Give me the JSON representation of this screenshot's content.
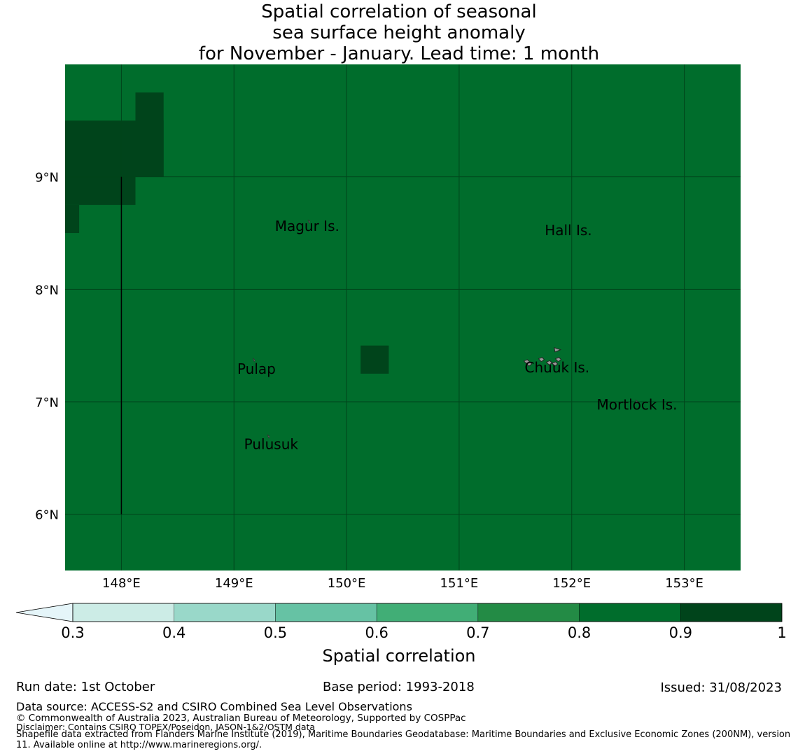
{
  "title": {
    "line1": "Spatial correlation of seasonal",
    "line2": "sea surface height anomaly",
    "line3": "for November - January. Lead time: 1 month"
  },
  "map": {
    "lon_ticks": [
      "148°E",
      "149°E",
      "150°E",
      "151°E",
      "152°E",
      "153°E"
    ],
    "lat_ticks": [
      "9°N",
      "8°N",
      "7°N",
      "6°N"
    ],
    "lon_range": [
      147.5,
      153.5
    ],
    "lat_range": [
      5.5,
      10.0
    ],
    "background_value_color": "#006d2c",
    "high_value_color": "#00441b",
    "grid_color": "#00441b",
    "land_color": "#999999",
    "high_correlation_cells": [
      {
        "lon_min": 148.125,
        "lon_max": 148.375,
        "lat_min": 9.0,
        "lat_max": 9.75
      },
      {
        "lon_min": 147.5,
        "lon_max": 148.375,
        "lat_min": 9.0,
        "lat_max": 9.5
      },
      {
        "lon_min": 147.5,
        "lon_max": 148.125,
        "lat_min": 8.75,
        "lat_max": 9.0
      },
      {
        "lon_min": 147.5,
        "lon_max": 147.625,
        "lat_min": 8.5,
        "lat_max": 8.75
      },
      {
        "lon_min": 150.125,
        "lon_max": 150.375,
        "lat_min": 7.25,
        "lat_max": 7.5
      }
    ],
    "boundary_line": {
      "lon": 148.0,
      "lat_min": 6.0,
      "lat_max": 9.0
    },
    "places": [
      {
        "name": "Magur Is.",
        "lon": 149.65,
        "lat": 8.52
      },
      {
        "name": "Hall Is.",
        "lon": 151.97,
        "lat": 8.48
      },
      {
        "name": "Pulap",
        "lon": 149.2,
        "lat": 7.25
      },
      {
        "name": "Chuuk Is.",
        "lon": 151.87,
        "lat": 7.26
      },
      {
        "name": "Mortlock Is.",
        "lon": 152.58,
        "lat": 6.93
      },
      {
        "name": "Pulusuk",
        "lon": 149.33,
        "lat": 6.58
      }
    ],
    "islands": [
      {
        "lon": 149.67,
        "lat": 8.6
      },
      {
        "lon": 149.18,
        "lat": 7.37
      },
      {
        "lon": 149.31,
        "lat": 6.69
      },
      {
        "lon": 152.58,
        "lat": 7.0
      }
    ],
    "chuuk_islands": [
      {
        "lon": 151.6,
        "lat": 7.35
      },
      {
        "lon": 151.62,
        "lat": 7.33
      },
      {
        "lon": 151.73,
        "lat": 7.37
      },
      {
        "lon": 151.8,
        "lat": 7.34
      },
      {
        "lon": 151.87,
        "lat": 7.45
      },
      {
        "lon": 151.85,
        "lat": 7.33
      },
      {
        "lon": 151.88,
        "lat": 7.37
      }
    ]
  },
  "colorbar": {
    "title": "Spatial correlation",
    "ticks": [
      "0.3",
      "0.4",
      "0.5",
      "0.6",
      "0.7",
      "0.8",
      "0.9",
      "1"
    ],
    "bins": [
      {
        "lo": 0.3,
        "hi": 0.4,
        "color": "#ccece6"
      },
      {
        "lo": 0.4,
        "hi": 0.5,
        "color": "#99d8c9"
      },
      {
        "lo": 0.5,
        "hi": 0.6,
        "color": "#66c2a4"
      },
      {
        "lo": 0.6,
        "hi": 0.7,
        "color": "#41ae76"
      },
      {
        "lo": 0.7,
        "hi": 0.8,
        "color": "#238b45"
      },
      {
        "lo": 0.8,
        "hi": 0.9,
        "color": "#006d2c"
      },
      {
        "lo": 0.9,
        "hi": 1.0,
        "color": "#00441b"
      }
    ],
    "extend_color": "#e5f5f9"
  },
  "footer": {
    "run_date": "Run date: 1st October",
    "base_period": "Base period: 1993-2018",
    "issued": "Issued: 31/08/2023",
    "data_source": "Data source: ACCESS-S2 and CSIRO Combined Sea Level Observations",
    "copyright": "© Commonwealth of Australia 2023, Australian Bureau of Meteorology, Supported by COSPPac",
    "disclaimer": "Disclaimer: Contains CSIRO TOPEX/Poseidon, JASON-1&2/OSTM data",
    "shapefile": "Shapefile data extracted from Flanders Marine Institute (2019), Maritime Boundaries Geodatabase: Maritime Boundaries and Exclusive Economic Zones (200NM), version 11. Available online at http://www.marineregions.org/."
  }
}
